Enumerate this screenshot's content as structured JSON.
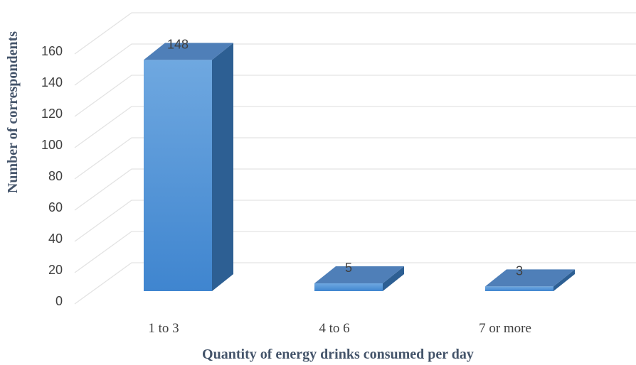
{
  "chart_data": {
    "type": "bar",
    "categories": [
      "1 to 3",
      "4 to 6",
      "7 or more"
    ],
    "values": [
      148,
      5,
      3
    ],
    "data_labels": [
      "148",
      "5",
      "3"
    ],
    "xlabel": "Quantity of energy drinks  consumed per day",
    "ylabel": "Number of correspondents",
    "ylim": [
      0,
      160
    ],
    "yticks": [
      "0",
      "20",
      "40",
      "60",
      "80",
      "100",
      "120",
      "140",
      "160"
    ],
    "grid": true,
    "three_d": true,
    "colors": {
      "front_top": "#6fa8e0",
      "front_bottom": "#3f85cf",
      "side": "#2d5f93",
      "top": "#4f7fb8"
    }
  }
}
